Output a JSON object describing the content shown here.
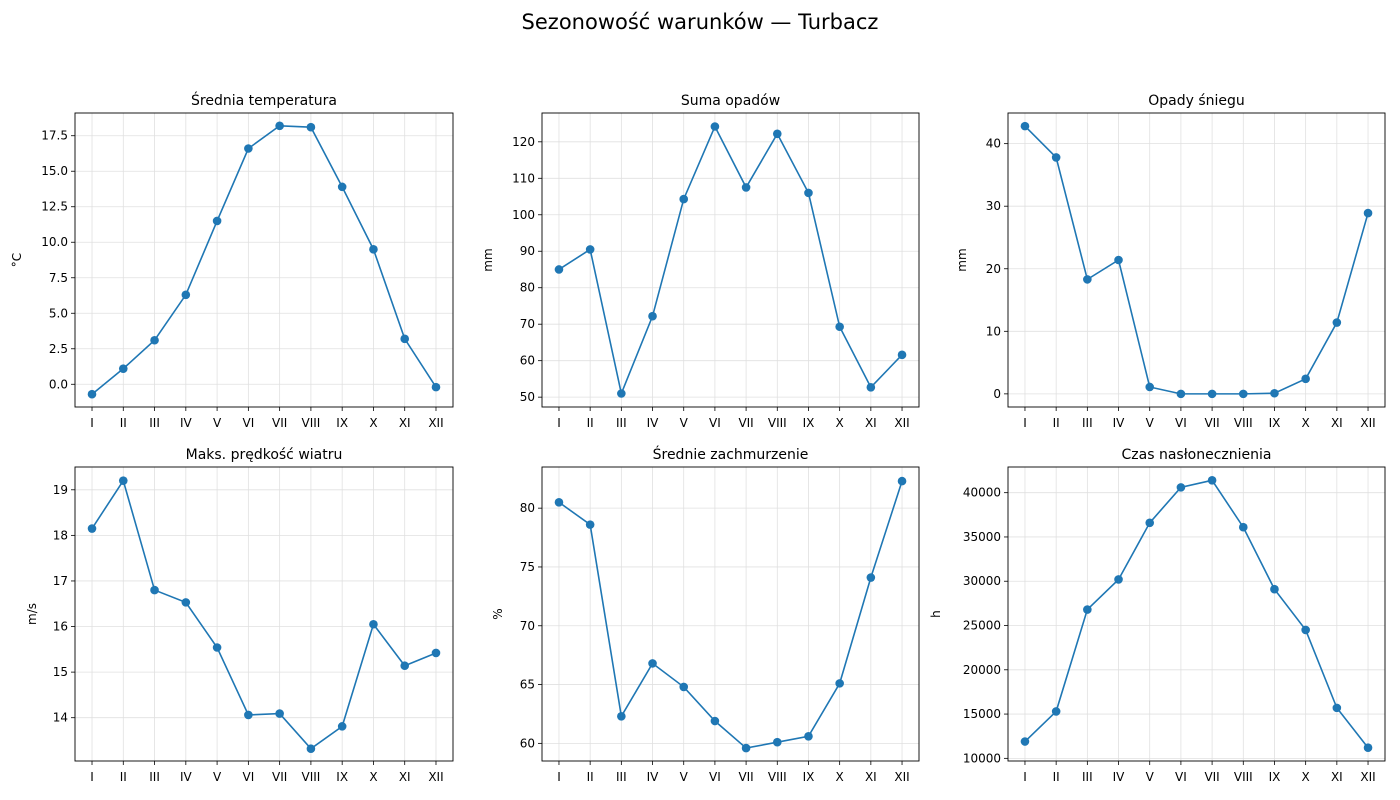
{
  "title": "Sezonowość warunków — Turbacz",
  "style": {
    "line_color": "#1f77b4",
    "grid_color": "#e0e0e0"
  },
  "chart_data": [
    {
      "type": "line",
      "title": "Średnia temperatura",
      "ylabel": "°C",
      "categories": [
        "I",
        "II",
        "III",
        "IV",
        "V",
        "VI",
        "VII",
        "VIII",
        "IX",
        "X",
        "XI",
        "XII"
      ],
      "values": [
        -0.7,
        1.1,
        3.1,
        6.3,
        11.5,
        16.6,
        18.2,
        18.1,
        13.9,
        9.5,
        3.2,
        -0.2
      ],
      "ylim": [
        -1.6,
        19.1
      ],
      "yticks": [
        0.0,
        2.5,
        5.0,
        7.5,
        10.0,
        12.5,
        15.0,
        17.5
      ],
      "ytick_labels": [
        "0.0",
        "2.5",
        "5.0",
        "7.5",
        "10.0",
        "12.5",
        "15.0",
        "17.5"
      ],
      "grid": true
    },
    {
      "type": "line",
      "title": "Suma opadów",
      "ylabel": "mm",
      "categories": [
        "I",
        "II",
        "III",
        "IV",
        "V",
        "VI",
        "VII",
        "VIII",
        "IX",
        "X",
        "XI",
        "XII"
      ],
      "values": [
        85,
        90.5,
        51,
        72.2,
        104.3,
        124.2,
        107.5,
        122.2,
        106,
        69.3,
        52.7,
        61.6
      ],
      "ylim": [
        47.3,
        127.9
      ],
      "yticks": [
        50,
        60,
        70,
        80,
        90,
        100,
        110,
        120
      ],
      "ytick_labels": [
        "50",
        "60",
        "70",
        "80",
        "90",
        "100",
        "110",
        "120"
      ],
      "grid": true
    },
    {
      "type": "line",
      "title": "Opady śniegu",
      "ylabel": "mm",
      "categories": [
        "I",
        "II",
        "III",
        "IV",
        "V",
        "VI",
        "VII",
        "VIII",
        "IX",
        "X",
        "XI",
        "XII"
      ],
      "values": [
        42.8,
        37.8,
        18.3,
        21.4,
        1.1,
        0.0,
        0.0,
        0.0,
        0.1,
        2.4,
        11.4,
        28.9
      ],
      "ylim": [
        -2.1,
        44.9
      ],
      "yticks": [
        0,
        10,
        20,
        30,
        40
      ],
      "ytick_labels": [
        "0",
        "10",
        "20",
        "30",
        "40"
      ],
      "grid": true
    },
    {
      "type": "line",
      "title": "Maks. prędkość wiatru",
      "ylabel": "m/s",
      "categories": [
        "I",
        "II",
        "III",
        "IV",
        "V",
        "VI",
        "VII",
        "VIII",
        "IX",
        "X",
        "XI",
        "XII"
      ],
      "values": [
        18.15,
        19.2,
        16.8,
        16.53,
        15.54,
        14.06,
        14.09,
        13.32,
        13.81,
        16.05,
        15.14,
        15.42
      ],
      "ylim": [
        13.05,
        19.5
      ],
      "yticks": [
        14,
        15,
        16,
        17,
        18,
        19
      ],
      "ytick_labels": [
        "14",
        "15",
        "16",
        "17",
        "18",
        "19"
      ],
      "grid": true
    },
    {
      "type": "line",
      "title": "Średnie zachmurzenie",
      "ylabel": "%",
      "categories": [
        "I",
        "II",
        "III",
        "IV",
        "V",
        "VI",
        "VII",
        "VIII",
        "IX",
        "X",
        "XI",
        "XII"
      ],
      "values": [
        80.5,
        78.6,
        62.3,
        66.8,
        64.8,
        61.9,
        59.6,
        60.1,
        60.6,
        65.1,
        74.1,
        82.3
      ],
      "ylim": [
        58.5,
        83.5
      ],
      "yticks": [
        60,
        65,
        70,
        75,
        80
      ],
      "ytick_labels": [
        "60",
        "65",
        "70",
        "75",
        "80"
      ],
      "grid": true
    },
    {
      "type": "line",
      "title": "Czas nasłonecznienia",
      "ylabel": "h",
      "categories": [
        "I",
        "II",
        "III",
        "IV",
        "V",
        "VI",
        "VII",
        "VIII",
        "IX",
        "X",
        "XI",
        "XII"
      ],
      "values": [
        11900,
        15300,
        26800,
        30200,
        36600,
        40600,
        41400,
        36100,
        29100,
        24500,
        15700,
        11200
      ],
      "ylim": [
        9700,
        42900
      ],
      "yticks": [
        10000,
        15000,
        20000,
        25000,
        30000,
        35000,
        40000
      ],
      "ytick_labels": [
        "10000",
        "15000",
        "20000",
        "25000",
        "30000",
        "35000",
        "40000"
      ],
      "grid": true
    }
  ]
}
